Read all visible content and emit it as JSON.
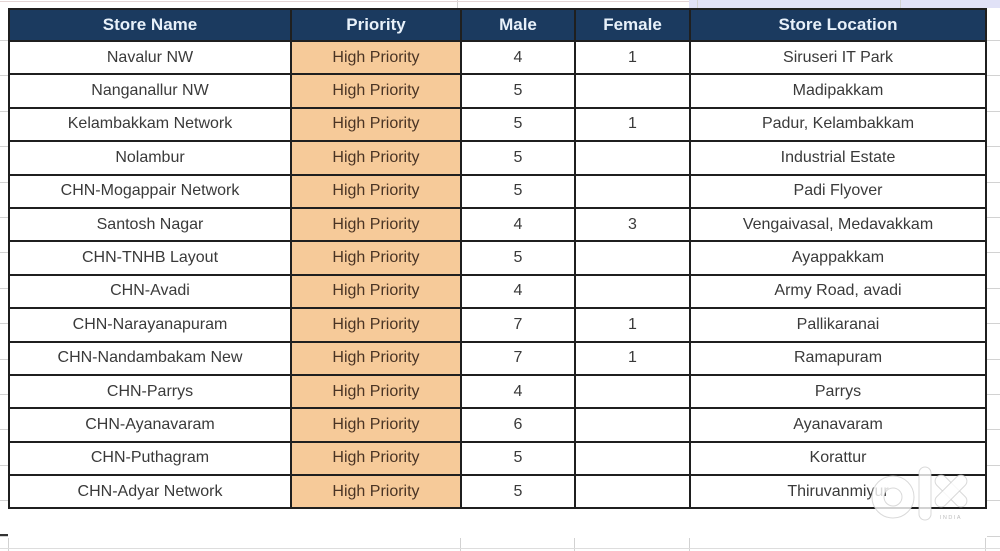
{
  "colors": {
    "header_bg": "#1b3a5f",
    "header_text": "#e8f1fa",
    "priority_bg": "#f6ca99",
    "priority_text": "#4a3424",
    "body_text": "#3a3a3a",
    "border": "#1f1f1f",
    "gridline": "#d2d2d2",
    "top_strip_highlight": "#e1e2f7"
  },
  "table": {
    "columns": [
      {
        "key": "store_name",
        "label": "Store Name"
      },
      {
        "key": "priority",
        "label": "Priority"
      },
      {
        "key": "male",
        "label": "Male"
      },
      {
        "key": "female",
        "label": "Female"
      },
      {
        "key": "store_location",
        "label": "Store Location"
      }
    ],
    "rows": [
      {
        "store_name": "Navalur NW",
        "priority": "High Priority",
        "male": "4",
        "female": "1",
        "store_location": "Siruseri IT Park"
      },
      {
        "store_name": "Nanganallur NW",
        "priority": "High Priority",
        "male": "5",
        "female": "",
        "store_location": "Madipakkam"
      },
      {
        "store_name": "Kelambakkam Network",
        "priority": "High Priority",
        "male": "5",
        "female": "1",
        "store_location": "Padur, Kelambakkam"
      },
      {
        "store_name": "Nolambur",
        "priority": "High Priority",
        "male": "5",
        "female": "",
        "store_location": "Industrial Estate"
      },
      {
        "store_name": "CHN-Mogappair Network",
        "priority": "High Priority",
        "male": "5",
        "female": "",
        "store_location": "Padi Flyover"
      },
      {
        "store_name": "Santosh Nagar",
        "priority": "High Priority",
        "male": "4",
        "female": "3",
        "store_location": "Vengaivasal, Medavakkam"
      },
      {
        "store_name": "CHN-TNHB Layout",
        "priority": "High Priority",
        "male": "5",
        "female": "",
        "store_location": "Ayappakkam"
      },
      {
        "store_name": "CHN-Avadi",
        "priority": "High Priority",
        "male": "4",
        "female": "",
        "store_location": "Army Road, avadi"
      },
      {
        "store_name": "CHN-Narayanapuram",
        "priority": "High Priority",
        "male": "7",
        "female": "1",
        "store_location": "Pallikaranai"
      },
      {
        "store_name": "CHN-Nandambakam New",
        "priority": "High Priority",
        "male": "7",
        "female": "1",
        "store_location": "Ramapuram"
      },
      {
        "store_name": "CHN-Parrys",
        "priority": "High Priority",
        "male": "4",
        "female": "",
        "store_location": "Parrys"
      },
      {
        "store_name": "CHN-Ayanavaram",
        "priority": "High Priority",
        "male": "6",
        "female": "",
        "store_location": "Ayanavaram"
      },
      {
        "store_name": "CHN-Puthagram",
        "priority": "High Priority",
        "male": "5",
        "female": "",
        "store_location": "Korattur"
      },
      {
        "store_name": "CHN-Adyar Network",
        "priority": "High Priority",
        "male": "5",
        "female": "",
        "store_location": "Thiruvanmiyur"
      }
    ]
  },
  "watermark": {
    "brand": "olx",
    "subtext": "INDIA"
  }
}
